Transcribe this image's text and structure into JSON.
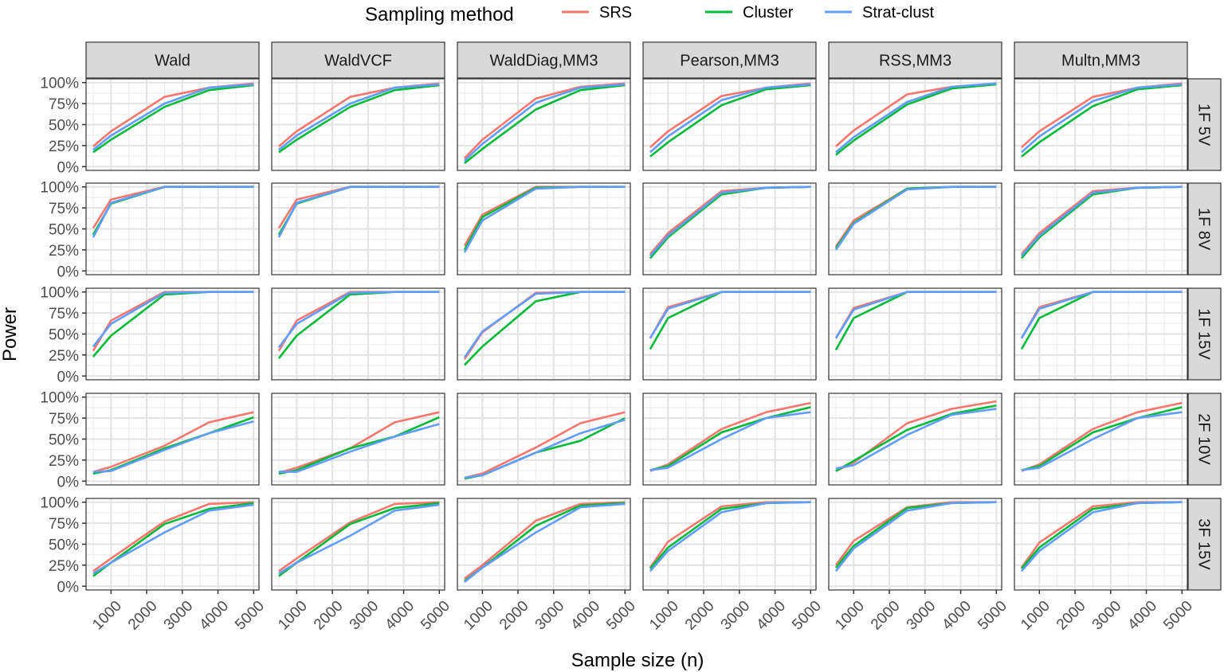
{
  "chart_data": {
    "type": "line",
    "title": "",
    "xlabel": "Sample size (n)",
    "ylabel": "Power",
    "legend": {
      "title": "Sampling method",
      "placement": "top",
      "entries": [
        {
          "name": "SRS",
          "color": "#F8766D"
        },
        {
          "name": "Cluster",
          "color": "#00BA38"
        },
        {
          "name": "Strat-clust",
          "color": "#619CFF"
        }
      ]
    },
    "xlim": [
      300,
      5150
    ],
    "ylim": [
      0,
      1
    ],
    "x_ticks": [
      1000,
      2000,
      3000,
      4000,
      5000
    ],
    "x_tick_labels": [
      "1000",
      "2000",
      "3000",
      "4000",
      "5000"
    ],
    "y_ticks": [
      0,
      0.25,
      0.5,
      0.75,
      1.0
    ],
    "y_tick_labels": [
      "0%",
      "25%",
      "50%",
      "75%",
      "100%"
    ],
    "grid": true,
    "x": [
      500,
      1000,
      2500,
      3750,
      5000
    ],
    "columns": [
      "Wald",
      "WaldVCF",
      "WaldDiag,MM3",
      "Pearson,MM3",
      "RSS,MM3",
      "Multn,MM3"
    ],
    "rows": [
      "1F 5V",
      "1F 8V",
      "1F 15V",
      "2F 10V",
      "3F 15V"
    ],
    "panels": [
      {
        "row": "1F 5V",
        "col": "Wald",
        "series": {
          "SRS": [
            0.24,
            0.42,
            0.83,
            0.94,
            0.99
          ],
          "Cluster": [
            0.17,
            0.32,
            0.71,
            0.91,
            0.97
          ],
          "Strat-clust": [
            0.2,
            0.37,
            0.75,
            0.94,
            0.98
          ]
        }
      },
      {
        "row": "1F 5V",
        "col": "WaldVCF",
        "series": {
          "SRS": [
            0.24,
            0.42,
            0.83,
            0.94,
            0.99
          ],
          "Cluster": [
            0.17,
            0.32,
            0.71,
            0.91,
            0.97
          ],
          "Strat-clust": [
            0.2,
            0.37,
            0.75,
            0.94,
            0.98
          ]
        }
      },
      {
        "row": "1F 5V",
        "col": "WaldDiag,MM3",
        "series": {
          "SRS": [
            0.1,
            0.32,
            0.81,
            0.95,
            0.99
          ],
          "Cluster": [
            0.04,
            0.21,
            0.68,
            0.91,
            0.97
          ],
          "Strat-clust": [
            0.07,
            0.27,
            0.76,
            0.94,
            0.98
          ]
        }
      },
      {
        "row": "1F 5V",
        "col": "Pearson,MM3",
        "series": {
          "SRS": [
            0.23,
            0.42,
            0.84,
            0.94,
            0.99
          ],
          "Cluster": [
            0.12,
            0.29,
            0.73,
            0.92,
            0.97
          ],
          "Strat-clust": [
            0.17,
            0.36,
            0.79,
            0.94,
            0.98
          ]
        }
      },
      {
        "row": "1F 5V",
        "col": "RSS,MM3",
        "series": {
          "SRS": [
            0.24,
            0.43,
            0.86,
            0.95,
            0.99
          ],
          "Cluster": [
            0.14,
            0.31,
            0.74,
            0.93,
            0.98
          ],
          "Strat-clust": [
            0.17,
            0.35,
            0.77,
            0.95,
            0.99
          ]
        }
      },
      {
        "row": "1F 5V",
        "col": "Multn,MM3",
        "series": {
          "SRS": [
            0.23,
            0.42,
            0.83,
            0.94,
            0.99
          ],
          "Cluster": [
            0.12,
            0.29,
            0.72,
            0.92,
            0.97
          ],
          "Strat-clust": [
            0.17,
            0.36,
            0.78,
            0.94,
            0.98
          ]
        }
      },
      {
        "row": "1F 8V",
        "col": "Wald",
        "series": {
          "SRS": [
            0.51,
            0.85,
            1.0,
            1.0,
            1.0
          ],
          "Cluster": [
            0.43,
            0.8,
            1.0,
            1.0,
            1.0
          ],
          "Strat-clust": [
            0.4,
            0.81,
            1.0,
            1.0,
            1.0
          ]
        }
      },
      {
        "row": "1F 8V",
        "col": "WaldVCF",
        "series": {
          "SRS": [
            0.51,
            0.85,
            1.0,
            1.0,
            1.0
          ],
          "Cluster": [
            0.43,
            0.8,
            1.0,
            1.0,
            1.0
          ],
          "Strat-clust": [
            0.4,
            0.81,
            1.0,
            1.0,
            1.0
          ]
        }
      },
      {
        "row": "1F 8V",
        "col": "WaldDiag,MM3",
        "series": {
          "SRS": [
            0.3,
            0.67,
            1.0,
            1.0,
            1.0
          ],
          "Cluster": [
            0.25,
            0.64,
            0.99,
            1.0,
            1.0
          ],
          "Strat-clust": [
            0.22,
            0.6,
            0.98,
            1.0,
            1.0
          ]
        }
      },
      {
        "row": "1F 8V",
        "col": "Pearson,MM3",
        "series": {
          "SRS": [
            0.2,
            0.45,
            0.95,
            0.99,
            1.0
          ],
          "Cluster": [
            0.15,
            0.4,
            0.91,
            0.99,
            1.0
          ],
          "Strat-clust": [
            0.18,
            0.42,
            0.93,
            0.99,
            1.0
          ]
        }
      },
      {
        "row": "1F 8V",
        "col": "RSS,MM3",
        "series": {
          "SRS": [
            0.29,
            0.6,
            0.98,
            1.0,
            1.0
          ],
          "Cluster": [
            0.27,
            0.57,
            0.98,
            1.0,
            1.0
          ],
          "Strat-clust": [
            0.25,
            0.56,
            0.97,
            1.0,
            1.0
          ]
        }
      },
      {
        "row": "1F 8V",
        "col": "Multn,MM3",
        "series": {
          "SRS": [
            0.2,
            0.45,
            0.95,
            0.99,
            1.0
          ],
          "Cluster": [
            0.15,
            0.4,
            0.91,
            0.99,
            1.0
          ],
          "Strat-clust": [
            0.18,
            0.42,
            0.93,
            0.99,
            1.0
          ]
        }
      },
      {
        "row": "1F 15V",
        "col": "Wald",
        "series": {
          "SRS": [
            0.3,
            0.66,
            1.0,
            1.0,
            1.0
          ],
          "Cluster": [
            0.23,
            0.48,
            0.97,
            1.0,
            1.0
          ],
          "Strat-clust": [
            0.35,
            0.62,
            0.99,
            1.0,
            1.0
          ]
        }
      },
      {
        "row": "1F 15V",
        "col": "WaldVCF",
        "series": {
          "SRS": [
            0.3,
            0.66,
            1.0,
            1.0,
            1.0
          ],
          "Cluster": [
            0.21,
            0.48,
            0.97,
            1.0,
            1.0
          ],
          "Strat-clust": [
            0.34,
            0.62,
            0.99,
            1.0,
            1.0
          ]
        }
      },
      {
        "row": "1F 15V",
        "col": "WaldDiag,MM3",
        "series": {
          "SRS": [
            0.2,
            0.52,
            0.99,
            1.0,
            1.0
          ],
          "Cluster": [
            0.13,
            0.35,
            0.89,
            1.0,
            1.0
          ],
          "Strat-clust": [
            0.22,
            0.53,
            0.98,
            1.0,
            1.0
          ]
        }
      },
      {
        "row": "1F 15V",
        "col": "Pearson,MM3",
        "series": {
          "SRS": [
            0.45,
            0.82,
            1.0,
            1.0,
            1.0
          ],
          "Cluster": [
            0.32,
            0.69,
            1.0,
            1.0,
            1.0
          ],
          "Strat-clust": [
            0.45,
            0.8,
            1.0,
            1.0,
            1.0
          ]
        }
      },
      {
        "row": "1F 15V",
        "col": "RSS,MM3",
        "series": {
          "SRS": [
            0.45,
            0.81,
            1.0,
            1.0,
            1.0
          ],
          "Cluster": [
            0.31,
            0.69,
            1.0,
            1.0,
            1.0
          ],
          "Strat-clust": [
            0.45,
            0.79,
            1.0,
            1.0,
            1.0
          ]
        }
      },
      {
        "row": "1F 15V",
        "col": "Multn,MM3",
        "series": {
          "SRS": [
            0.45,
            0.82,
            1.0,
            1.0,
            1.0
          ],
          "Cluster": [
            0.32,
            0.69,
            1.0,
            1.0,
            1.0
          ],
          "Strat-clust": [
            0.45,
            0.8,
            1.0,
            1.0,
            1.0
          ]
        }
      },
      {
        "row": "2F 10V",
        "col": "Wald",
        "series": {
          "SRS": [
            0.11,
            0.17,
            0.42,
            0.7,
            0.82
          ],
          "Cluster": [
            0.09,
            0.13,
            0.39,
            0.57,
            0.76
          ],
          "Strat-clust": [
            0.11,
            0.12,
            0.37,
            0.57,
            0.71
          ]
        }
      },
      {
        "row": "2F 10V",
        "col": "WaldVCF",
        "series": {
          "SRS": [
            0.1,
            0.16,
            0.39,
            0.7,
            0.82
          ],
          "Cluster": [
            0.09,
            0.13,
            0.39,
            0.53,
            0.76
          ],
          "Strat-clust": [
            0.11,
            0.11,
            0.35,
            0.53,
            0.68
          ]
        }
      },
      {
        "row": "2F 10V",
        "col": "WaldDiag,MM3",
        "series": {
          "SRS": [
            0.04,
            0.09,
            0.4,
            0.69,
            0.82
          ],
          "Cluster": [
            0.03,
            0.07,
            0.34,
            0.48,
            0.75
          ],
          "Strat-clust": [
            0.04,
            0.07,
            0.34,
            0.57,
            0.73
          ]
        }
      },
      {
        "row": "2F 10V",
        "col": "Pearson,MM3",
        "series": {
          "SRS": [
            0.12,
            0.2,
            0.62,
            0.82,
            0.93
          ],
          "Cluster": [
            0.13,
            0.18,
            0.58,
            0.75,
            0.88
          ],
          "Strat-clust": [
            0.13,
            0.16,
            0.5,
            0.75,
            0.82
          ]
        }
      },
      {
        "row": "2F 10V",
        "col": "RSS,MM3",
        "series": {
          "SRS": [
            0.12,
            0.22,
            0.69,
            0.86,
            0.95
          ],
          "Cluster": [
            0.12,
            0.24,
            0.61,
            0.8,
            0.9
          ],
          "Strat-clust": [
            0.15,
            0.19,
            0.55,
            0.79,
            0.86
          ]
        }
      },
      {
        "row": "2F 10V",
        "col": "Multn,MM3",
        "series": {
          "SRS": [
            0.12,
            0.2,
            0.62,
            0.82,
            0.93
          ],
          "Cluster": [
            0.13,
            0.18,
            0.58,
            0.75,
            0.88
          ],
          "Strat-clust": [
            0.13,
            0.16,
            0.5,
            0.75,
            0.82
          ]
        }
      },
      {
        "row": "3F 15V",
        "col": "Wald",
        "series": {
          "SRS": [
            0.18,
            0.33,
            0.77,
            0.98,
            1.0
          ],
          "Cluster": [
            0.12,
            0.28,
            0.74,
            0.92,
            0.99
          ],
          "Strat-clust": [
            0.15,
            0.28,
            0.64,
            0.9,
            0.97
          ]
        }
      },
      {
        "row": "3F 15V",
        "col": "WaldVCF",
        "series": {
          "SRS": [
            0.18,
            0.33,
            0.76,
            0.98,
            1.0
          ],
          "Cluster": [
            0.12,
            0.28,
            0.74,
            0.93,
            0.99
          ],
          "Strat-clust": [
            0.15,
            0.28,
            0.6,
            0.9,
            0.97
          ]
        }
      },
      {
        "row": "3F 15V",
        "col": "WaldDiag,MM3",
        "series": {
          "SRS": [
            0.09,
            0.25,
            0.78,
            0.98,
            1.0
          ],
          "Cluster": [
            0.06,
            0.22,
            0.72,
            0.96,
            0.99
          ],
          "Strat-clust": [
            0.05,
            0.22,
            0.64,
            0.94,
            0.98
          ]
        }
      },
      {
        "row": "3F 15V",
        "col": "Pearson,MM3",
        "series": {
          "SRS": [
            0.22,
            0.53,
            0.95,
            1.0,
            1.0
          ],
          "Cluster": [
            0.21,
            0.46,
            0.92,
            0.99,
            1.0
          ],
          "Strat-clust": [
            0.18,
            0.42,
            0.88,
            0.99,
            1.0
          ]
        }
      },
      {
        "row": "3F 15V",
        "col": "RSS,MM3",
        "series": {
          "SRS": [
            0.25,
            0.54,
            0.94,
            1.0,
            1.0
          ],
          "Cluster": [
            0.22,
            0.48,
            0.93,
            0.99,
            1.0
          ],
          "Strat-clust": [
            0.18,
            0.45,
            0.9,
            0.99,
            1.0
          ]
        }
      },
      {
        "row": "3F 15V",
        "col": "Multn,MM3",
        "series": {
          "SRS": [
            0.22,
            0.52,
            0.95,
            1.0,
            1.0
          ],
          "Cluster": [
            0.21,
            0.46,
            0.92,
            0.99,
            1.0
          ],
          "Strat-clust": [
            0.18,
            0.42,
            0.88,
            0.99,
            1.0
          ]
        }
      }
    ]
  }
}
